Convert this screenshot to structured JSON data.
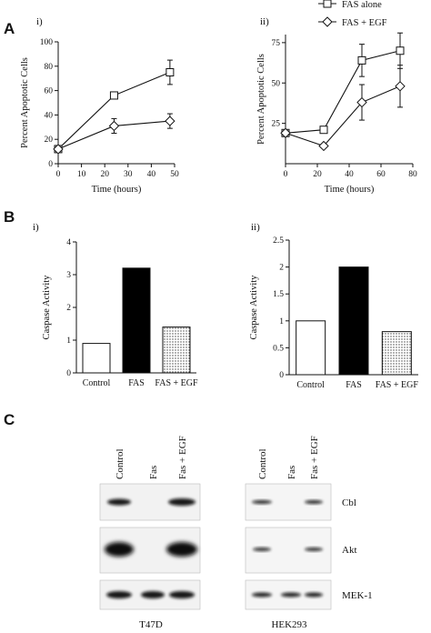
{
  "panels": {
    "A": {
      "letter": "A",
      "i_label": "i)",
      "ii_label": "ii)"
    },
    "B": {
      "letter": "B",
      "i_label": "i)",
      "ii_label": "ii)"
    },
    "C": {
      "letter": "C"
    }
  },
  "chart_data": [
    {
      "id": "A-i",
      "type": "line",
      "xlabel": "Time (hours)",
      "ylabel": "Percent Apoptotic Cells",
      "xlim": [
        0,
        50
      ],
      "ylim": [
        0,
        100
      ],
      "xticks": [
        "0",
        "10",
        "20",
        "30",
        "40",
        "50"
      ],
      "yticks": [
        "0",
        "20",
        "40",
        "60",
        "80",
        "100"
      ],
      "series": [
        {
          "marker": "square",
          "x": [
            0,
            24,
            48
          ],
          "y": [
            12,
            56,
            75
          ],
          "err": [
            1,
            2,
            10
          ]
        },
        {
          "marker": "diamond",
          "x": [
            0,
            24,
            48
          ],
          "y": [
            12,
            31,
            35
          ],
          "err": [
            1,
            6,
            6
          ]
        }
      ]
    },
    {
      "id": "A-ii",
      "type": "line",
      "xlabel": "Time (hours)",
      "ylabel": "Percent Apoptotic Cells",
      "xlim": [
        0,
        80
      ],
      "ylim": [
        0,
        80
      ],
      "xticks": [
        "0",
        "20",
        "40",
        "60",
        "80"
      ],
      "yticks": [
        "25",
        "50",
        "75"
      ],
      "legend_position": "top-right",
      "series": [
        {
          "name": "FAS alone",
          "marker": "square",
          "x": [
            0,
            24,
            48,
            72
          ],
          "y": [
            19,
            21,
            64,
            70
          ],
          "err": [
            2,
            2,
            10,
            11
          ]
        },
        {
          "name": "FAS + EGF",
          "marker": "diamond",
          "x": [
            0,
            24,
            48,
            72
          ],
          "y": [
            19,
            11,
            38,
            48
          ],
          "err": [
            2,
            2,
            11,
            13
          ]
        }
      ]
    },
    {
      "id": "B-i",
      "type": "bar",
      "ylabel": "Caspase Activity",
      "ylim": [
        0,
        4
      ],
      "yticks": [
        "0",
        "1",
        "2",
        "3",
        "4"
      ],
      "categories": [
        "Control",
        "FAS",
        "FAS + EGF"
      ],
      "values": [
        0.9,
        3.2,
        1.4
      ],
      "fills": [
        "white",
        "black",
        "dotted"
      ]
    },
    {
      "id": "B-ii",
      "type": "bar",
      "ylabel": "Caspase Activity",
      "ylim": [
        0,
        2.5
      ],
      "yticks": [
        "0",
        "0.5",
        "1",
        "1.5",
        "2",
        "2.5"
      ],
      "categories": [
        "Control",
        "FAS",
        "FAS + EGF"
      ],
      "values": [
        1.0,
        2.0,
        0.8
      ],
      "fills": [
        "white",
        "black",
        "dotted"
      ]
    }
  ],
  "blots": {
    "lanes": [
      "Control",
      "Fas",
      "Fas + EGF"
    ],
    "proteins": [
      "Cbl",
      "Akt",
      "MEK-1"
    ],
    "cell_lines": [
      "T47D",
      "HEK293"
    ]
  }
}
